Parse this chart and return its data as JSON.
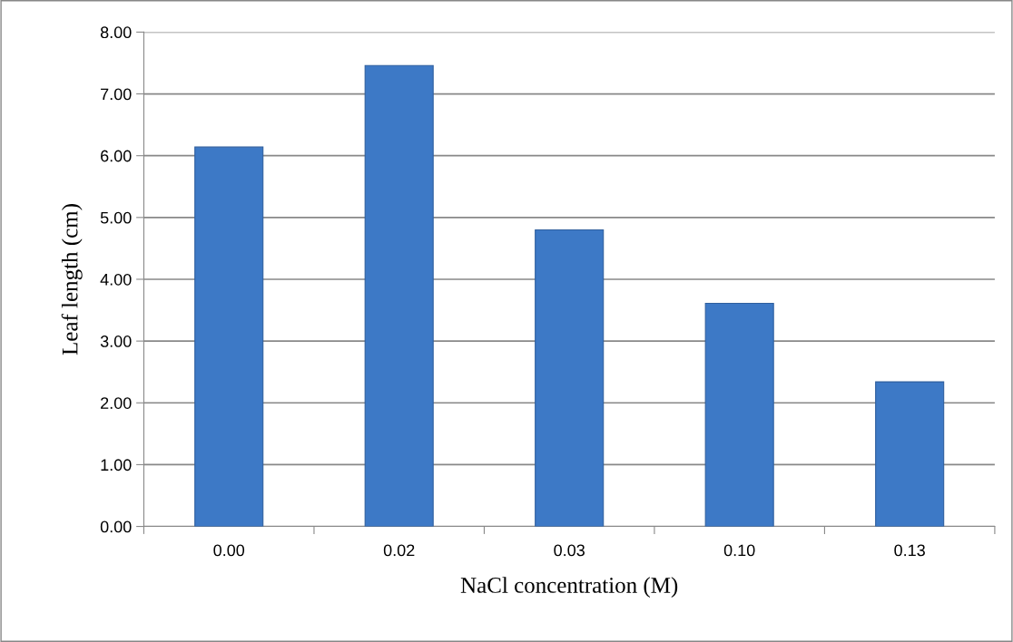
{
  "chart_data": {
    "type": "bar",
    "xlabel": "NaCl concentration (M)",
    "ylabel": "Leaf length (cm)",
    "categories": [
      "0.00",
      "0.02",
      "0.03",
      "0.10",
      "0.13"
    ],
    "values": [
      6.14,
      7.46,
      4.8,
      3.61,
      2.34
    ],
    "color": "#3d79c6",
    "ylim": [
      0,
      8
    ],
    "yticks": [
      {
        "value": 0,
        "label": "0.00"
      },
      {
        "value": 1,
        "label": "1.00"
      },
      {
        "value": 2,
        "label": "2.00"
      },
      {
        "value": 3,
        "label": "3.00"
      },
      {
        "value": 4,
        "label": "4.00"
      },
      {
        "value": 5,
        "label": "5.00"
      },
      {
        "value": 6,
        "label": "6.00"
      },
      {
        "value": 7,
        "label": "7.00"
      },
      {
        "value": 8,
        "label": "8.00"
      }
    ],
    "grid": "y"
  }
}
